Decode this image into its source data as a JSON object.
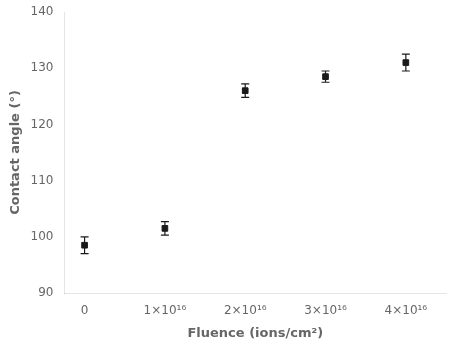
{
  "chart_data": {
    "type": "scatter",
    "x": [
      0,
      1e+16,
      2e+16,
      3e+16,
      4e+16
    ],
    "values": [
      98.5,
      101.5,
      126.0,
      128.5,
      131.0
    ],
    "errors": [
      1.5,
      1.2,
      1.2,
      1.0,
      1.5
    ],
    "xlabel": "Fluence (ions/cm²)",
    "ylabel": "Contact angle (°)",
    "xlim": [
      -2500000000000000.0,
      4.5e+16
    ],
    "ylim": [
      90,
      140
    ],
    "xticks": [
      0,
      {
        "value": 1e+16,
        "label": "1×10¹⁶"
      },
      {
        "value": 2e+16,
        "label": "2×10¹⁶"
      },
      {
        "value": 3e+16,
        "label": "3×10¹⁶"
      },
      {
        "value": 4e+16,
        "label": "4×10¹⁶"
      }
    ],
    "yticks": [
      90,
      100,
      110,
      120,
      130,
      140
    ],
    "color": "#1a1a1a",
    "marker": "square",
    "grid": false
  }
}
